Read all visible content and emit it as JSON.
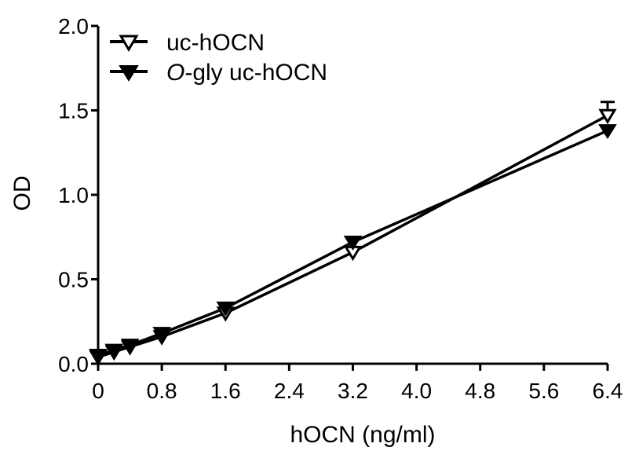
{
  "chart_data": {
    "type": "line",
    "xlabel": "hOCN (ng/ml)",
    "ylabel": "OD",
    "xlim": [
      0,
      6.4
    ],
    "ylim": [
      0,
      2.0
    ],
    "x_ticks": [
      "0",
      "0.8",
      "1.6",
      "2.4",
      "3.2",
      "4.0",
      "4.8",
      "5.6",
      "6.4"
    ],
    "y_ticks": [
      "0.0",
      "0.5",
      "1.0",
      "1.5",
      "2.0"
    ],
    "grid": false,
    "legend_position": "top-left",
    "series": [
      {
        "name": "uc-hOCN",
        "name_prefix_italic": "",
        "name_rest": "uc-hOCN",
        "marker": "open-triangle-down",
        "x": [
          0,
          0.2,
          0.4,
          0.8,
          1.6,
          3.2,
          6.4
        ],
        "y": [
          0.04,
          0.07,
          0.1,
          0.16,
          0.3,
          0.66,
          1.47
        ],
        "error_upper": [
          0,
          0,
          0,
          0,
          0,
          0,
          0.08
        ]
      },
      {
        "name": "O-gly uc-hOCN",
        "name_prefix_italic": "O",
        "name_rest": "-gly uc-hOCN",
        "marker": "filled-triangle-down",
        "x": [
          0,
          0.2,
          0.4,
          0.8,
          1.6,
          3.2,
          6.4
        ],
        "y": [
          0.05,
          0.08,
          0.11,
          0.18,
          0.33,
          0.72,
          1.38
        ],
        "error_upper": [
          0,
          0,
          0,
          0,
          0,
          0,
          0
        ]
      }
    ]
  }
}
